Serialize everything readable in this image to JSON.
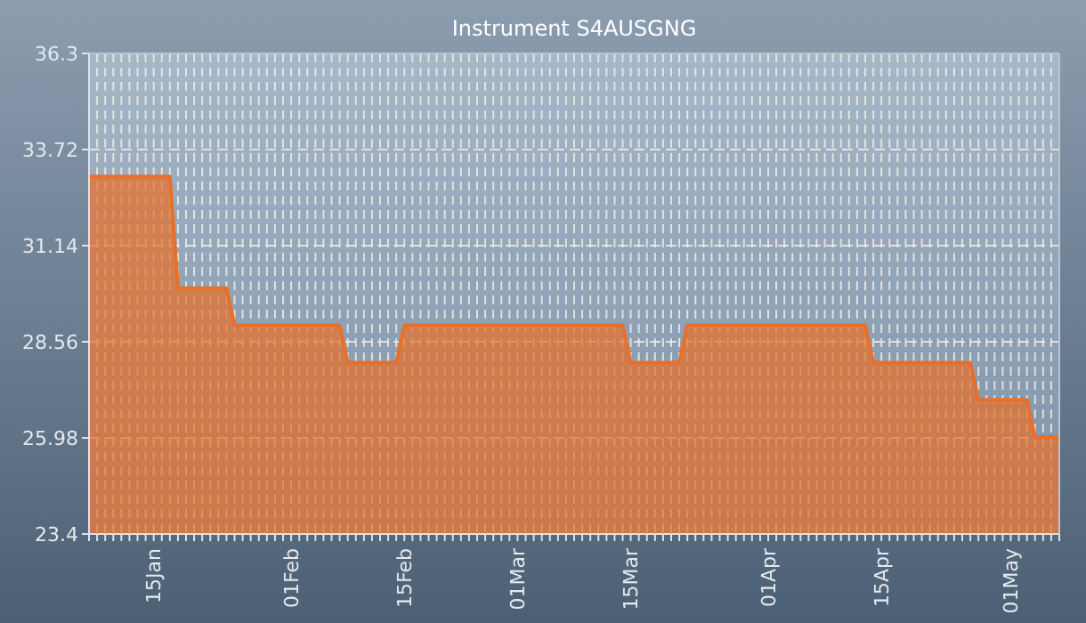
{
  "chart_data": {
    "type": "area",
    "title": "Instrument S4AUSGNG",
    "x": [
      "--01-07",
      "--01-17",
      "--01-18",
      "--01-24",
      "--01-25",
      "--02-07",
      "--02-08",
      "--02-14",
      "--02-15",
      "--03-14",
      "--03-15",
      "--03-21",
      "--03-22",
      "--04-13",
      "--04-14",
      "--04-26",
      "--04-27",
      "--05-03",
      "--05-04",
      "--05-07"
    ],
    "series": [
      {
        "color": "#e8702a",
        "values": [
          33,
          33,
          30,
          30,
          29,
          29,
          28,
          28,
          29,
          29,
          28,
          28,
          29,
          29,
          28,
          28,
          27,
          27,
          26,
          26
        ]
      }
    ],
    "xlim": [
      "--01-07",
      "--05-07"
    ],
    "xticks": [
      {
        "value": "--01-15",
        "label": "15Jan"
      },
      {
        "value": "--02-01",
        "label": "01Feb"
      },
      {
        "value": "--02-15",
        "label": "15Feb"
      },
      {
        "value": "--03-01",
        "label": "01Mar"
      },
      {
        "value": "--03-15",
        "label": "15Mar"
      },
      {
        "value": "--04-01",
        "label": "01Apr"
      },
      {
        "value": "--04-15",
        "label": "15Apr"
      },
      {
        "value": "--05-01",
        "label": "01May"
      }
    ],
    "ylim": [
      23.4,
      36.3
    ],
    "yticks": [
      23.4,
      25.98,
      28.56,
      31.14,
      33.72,
      36.3
    ],
    "grid": true,
    "line_style": "solid"
  }
}
